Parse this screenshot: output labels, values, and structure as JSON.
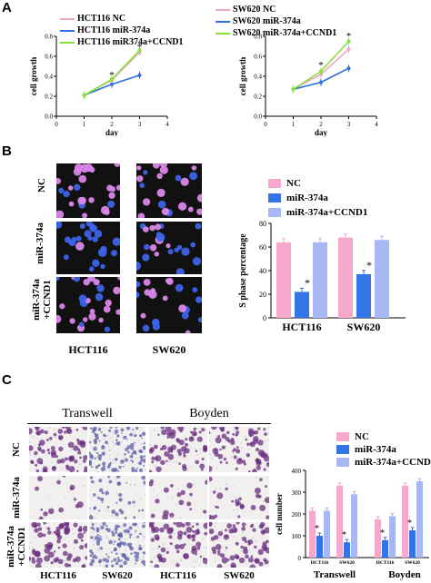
{
  "panels": {
    "A": {
      "letter": "A"
    },
    "B": {
      "letter": "B"
    },
    "C": {
      "letter": "C"
    }
  },
  "colors": {
    "nc": "#f4a6c8",
    "mir": "#2f6fe0",
    "ccnd1": "#86e23a",
    "bar_nc": "#f6a9cc",
    "bar_mir": "#3375e6",
    "bar_ccnd1": "#a8b8f4"
  },
  "panelA": {
    "left_legend": [
      "HCT116 NC",
      "HCT116 miR-374a",
      "HCT116 miR374a+CCND1"
    ],
    "right_legend": [
      "SW620 NC",
      "SW620 miR-374a",
      "SW620 miR-374a+CCND1"
    ]
  },
  "panelB": {
    "row_labels": [
      "NC",
      "miR-374a",
      "miR-374a\n+CCND1"
    ],
    "col_labels": [
      "HCT116",
      "SW620"
    ],
    "legend": [
      "NC",
      "miR-374a",
      "miR-374a+CCND1"
    ]
  },
  "panelC": {
    "header_left": "Transwell",
    "header_right": "Boyden",
    "row_labels": [
      "NC",
      "miR-374a",
      "miR-374a\n+CCND1"
    ],
    "col_labels": [
      "HCT116",
      "SW620",
      "HCT116",
      "SW620"
    ],
    "legend": [
      "NC",
      "miR-374a",
      "miR-374a+CCND1"
    ]
  },
  "chart_data": [
    {
      "type": "line",
      "panel": "A-left",
      "xlabel": "day",
      "ylabel": "cell growth",
      "xlim": [
        0,
        4
      ],
      "ylim": [
        0.0,
        0.8
      ],
      "xticks": [
        "0",
        "1",
        "2",
        "3",
        "4"
      ],
      "yticks": [
        "0.0",
        "0.2",
        "0.4",
        "0.6",
        "0.8"
      ],
      "x": [
        1,
        2,
        3
      ],
      "series": [
        {
          "name": "HCT116 NC",
          "values": [
            0.21,
            0.36,
            0.64
          ]
        },
        {
          "name": "HCT116 miR-374a",
          "values": [
            0.21,
            0.32,
            0.41
          ]
        },
        {
          "name": "HCT116 miR374a+CCND1",
          "values": [
            0.21,
            0.37,
            0.66
          ]
        }
      ],
      "annotations": [
        {
          "x": 2,
          "y": 0.42,
          "text": "*"
        },
        {
          "x": 3,
          "y": 0.7,
          "text": "*"
        }
      ]
    },
    {
      "type": "line",
      "panel": "A-right",
      "xlabel": "day",
      "ylabel": "cell growth",
      "xlim": [
        0,
        4
      ],
      "ylim": [
        0.0,
        0.8
      ],
      "xticks": [
        "0",
        "1",
        "2",
        "3",
        "4"
      ],
      "yticks": [
        "0.0",
        "0.2",
        "0.4",
        "0.6",
        "0.8"
      ],
      "x": [
        1,
        2,
        3
      ],
      "series": [
        {
          "name": "SW620 NC",
          "values": [
            0.27,
            0.42,
            0.67
          ]
        },
        {
          "name": "SW620 miR-374a",
          "values": [
            0.27,
            0.34,
            0.48
          ]
        },
        {
          "name": "SW620 miR-374a+CCND1",
          "values": [
            0.27,
            0.45,
            0.75
          ]
        }
      ],
      "annotations": [
        {
          "x": 2,
          "y": 0.52,
          "text": "*"
        },
        {
          "x": 3,
          "y": 0.81,
          "text": "*"
        }
      ]
    },
    {
      "type": "bar",
      "panel": "B",
      "ylabel": "S phase percentage",
      "ylim": [
        0,
        80
      ],
      "yticks": [
        "0",
        "20",
        "40",
        "60",
        "80"
      ],
      "categories": [
        "HCT116",
        "SW620"
      ],
      "series": [
        {
          "name": "NC",
          "values": [
            64,
            68
          ]
        },
        {
          "name": "miR-374a",
          "values": [
            22,
            37
          ]
        },
        {
          "name": "miR-374a+CCND1",
          "values": [
            64,
            66
          ]
        }
      ],
      "annotations": [
        {
          "category": "HCT116",
          "series": "miR-374a",
          "text": "*"
        },
        {
          "category": "SW620",
          "series": "miR-374a",
          "text": "*"
        }
      ]
    },
    {
      "type": "bar",
      "panel": "C",
      "ylabel": "cell number",
      "ylim": [
        0,
        400
      ],
      "yticks": [
        "0",
        "100",
        "200",
        "300",
        "400"
      ],
      "categories": [
        "HCT116",
        "SW620",
        "HCT116",
        "SW620"
      ],
      "group_labels": [
        "Transwell",
        "Boyden"
      ],
      "series": [
        {
          "name": "NC",
          "values": [
            215,
            330,
            175,
            330
          ]
        },
        {
          "name": "miR-374a",
          "values": [
            100,
            70,
            80,
            125
          ]
        },
        {
          "name": "miR-374a+CCND1",
          "values": [
            215,
            290,
            190,
            350
          ]
        }
      ],
      "annotations": [
        {
          "category": 0,
          "text": "*"
        },
        {
          "category": 1,
          "text": "*"
        },
        {
          "category": 2,
          "text": "*"
        },
        {
          "category": 3,
          "text": "*"
        }
      ]
    }
  ]
}
